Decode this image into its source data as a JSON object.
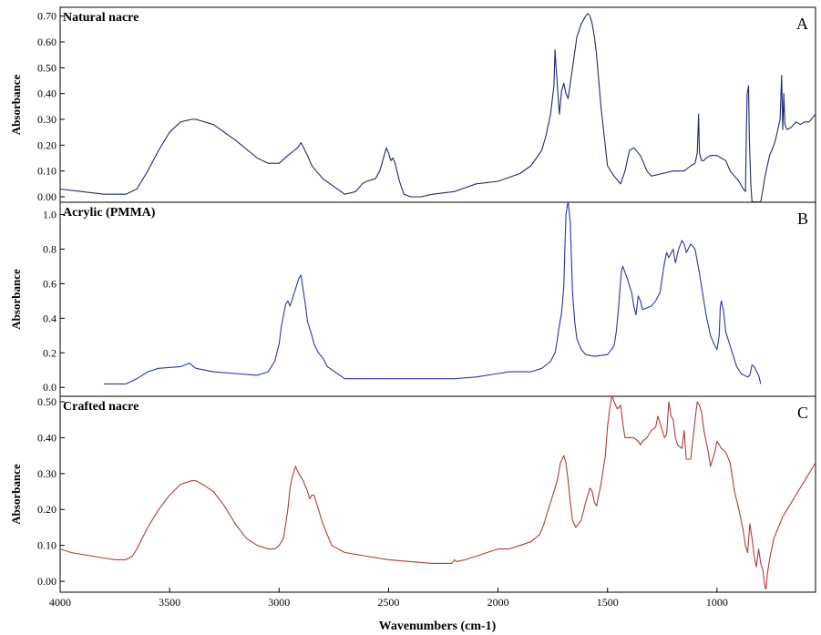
{
  "figure": {
    "xlabel": "Wavenumbers (cm-1)",
    "x_ticks": [
      "4000",
      "3500",
      "3000",
      "2500",
      "2000",
      "1500",
      "1000"
    ],
    "xlim": [
      4000,
      550
    ],
    "x_reversed": true
  },
  "chart_data": [
    {
      "type": "line",
      "panel_letter": "A",
      "title": "Natural nacre",
      "ylabel": "Absorbance",
      "ylim": [
        0.0,
        0.72
      ],
      "y_ticks": [
        "0.00",
        "0.10",
        "0.20",
        "0.30",
        "0.40",
        "0.50",
        "0.60",
        "0.70"
      ],
      "color": "#1f2a6e",
      "grid": false,
      "series": [
        {
          "x": [
            4000,
            3900,
            3800,
            3700,
            3650,
            3600,
            3550,
            3500,
            3450,
            3400,
            3380,
            3300,
            3200,
            3100,
            3050,
            3000,
            2960,
            2930,
            2915,
            2900,
            2870,
            2850,
            2830,
            2810,
            2800,
            2700,
            2650,
            2620,
            2600,
            2560,
            2540,
            2520,
            2510,
            2500,
            2490,
            2480,
            2470,
            2450,
            2430,
            2400,
            2350,
            2300,
            2200,
            2100,
            2000,
            1900,
            1850,
            1800,
            1780,
            1760,
            1745,
            1740,
            1735,
            1720,
            1710,
            1700,
            1690,
            1680,
            1660,
            1640,
            1620,
            1600,
            1590,
            1580,
            1570,
            1560,
            1550,
            1530,
            1500,
            1470,
            1450,
            1440,
            1420,
            1400,
            1380,
            1350,
            1320,
            1300,
            1250,
            1200,
            1150,
            1120,
            1100,
            1090,
            1084,
            1080,
            1070,
            1060,
            1050,
            1030,
            1000,
            980,
            960,
            940,
            900,
            880,
            870,
            866,
            862,
            856,
            852,
            845,
            840,
            800,
            780,
            760,
            750,
            740,
            730,
            712,
            705,
            700,
            695,
            690,
            680,
            660,
            640,
            620,
            600,
            580,
            560,
            550
          ],
          "y": [
            0.03,
            0.02,
            0.01,
            0.01,
            0.03,
            0.1,
            0.18,
            0.25,
            0.29,
            0.3,
            0.3,
            0.28,
            0.22,
            0.15,
            0.13,
            0.13,
            0.16,
            0.18,
            0.19,
            0.21,
            0.16,
            0.12,
            0.1,
            0.08,
            0.07,
            0.01,
            0.02,
            0.05,
            0.06,
            0.07,
            0.1,
            0.16,
            0.19,
            0.17,
            0.14,
            0.15,
            0.13,
            0.06,
            0.01,
            0.0,
            0.0,
            0.01,
            0.02,
            0.05,
            0.06,
            0.09,
            0.12,
            0.18,
            0.24,
            0.32,
            0.43,
            0.57,
            0.5,
            0.32,
            0.41,
            0.44,
            0.4,
            0.38,
            0.5,
            0.62,
            0.67,
            0.7,
            0.71,
            0.7,
            0.67,
            0.62,
            0.55,
            0.35,
            0.12,
            0.08,
            0.06,
            0.05,
            0.1,
            0.18,
            0.19,
            0.16,
            0.1,
            0.08,
            0.09,
            0.1,
            0.1,
            0.12,
            0.13,
            0.17,
            0.32,
            0.17,
            0.14,
            0.14,
            0.15,
            0.16,
            0.16,
            0.15,
            0.14,
            0.1,
            0.06,
            0.03,
            0.02,
            0.25,
            0.4,
            0.43,
            0.22,
            0.04,
            -0.02,
            -0.02,
            0.08,
            0.16,
            0.18,
            0.2,
            0.23,
            0.3,
            0.47,
            0.26,
            0.4,
            0.28,
            0.26,
            0.27,
            0.29,
            0.28,
            0.29,
            0.29,
            0.31,
            0.32
          ]
        }
      ]
    },
    {
      "type": "line",
      "panel_letter": "B",
      "title": "Acrylic (PMMA)",
      "ylabel": "Absorbance",
      "ylim": [
        -0.02,
        1.05
      ],
      "y_ticks": [
        "0.0",
        "0.2",
        "0.4",
        "0.6",
        "0.8",
        "1.0"
      ],
      "color": "#2b35a8",
      "grid": false,
      "series": [
        {
          "x": [
            3800,
            3750,
            3700,
            3650,
            3600,
            3550,
            3450,
            3430,
            3410,
            3380,
            3300,
            3200,
            3100,
            3050,
            3020,
            3000,
            2990,
            2970,
            2960,
            2950,
            2930,
            2910,
            2900,
            2880,
            2870,
            2850,
            2840,
            2820,
            2800,
            2780,
            2700,
            2500,
            2300,
            2200,
            2100,
            2000,
            1950,
            1900,
            1850,
            1800,
            1780,
            1760,
            1740,
            1730,
            1725,
            1710,
            1700,
            1695,
            1690,
            1680,
            1670,
            1660,
            1650,
            1640,
            1620,
            1600,
            1560,
            1500,
            1470,
            1460,
            1450,
            1440,
            1435,
            1430,
            1410,
            1390,
            1380,
            1370,
            1360,
            1350,
            1340,
            1300,
            1280,
            1260,
            1240,
            1230,
            1220,
            1200,
            1190,
            1175,
            1160,
            1150,
            1140,
            1120,
            1100,
            1080,
            1070,
            1060,
            1050,
            1040,
            1030,
            1010,
            1000,
            990,
            985,
            980,
            970,
            960,
            940,
            910,
            890,
            860,
            850,
            840,
            830,
            810,
            800
          ],
          "y": [
            0.02,
            0.02,
            0.02,
            0.05,
            0.09,
            0.11,
            0.12,
            0.13,
            0.14,
            0.11,
            0.09,
            0.08,
            0.07,
            0.09,
            0.15,
            0.25,
            0.35,
            0.48,
            0.5,
            0.47,
            0.55,
            0.63,
            0.65,
            0.48,
            0.38,
            0.3,
            0.25,
            0.2,
            0.17,
            0.12,
            0.05,
            0.05,
            0.05,
            0.05,
            0.06,
            0.08,
            0.09,
            0.09,
            0.09,
            0.11,
            0.13,
            0.15,
            0.2,
            0.27,
            0.32,
            0.43,
            0.58,
            0.8,
            1.0,
            1.08,
            0.95,
            0.55,
            0.38,
            0.28,
            0.22,
            0.19,
            0.18,
            0.19,
            0.24,
            0.32,
            0.45,
            0.62,
            0.68,
            0.7,
            0.63,
            0.55,
            0.47,
            0.42,
            0.53,
            0.5,
            0.45,
            0.47,
            0.5,
            0.55,
            0.72,
            0.78,
            0.75,
            0.8,
            0.72,
            0.8,
            0.85,
            0.83,
            0.78,
            0.83,
            0.8,
            0.66,
            0.58,
            0.5,
            0.42,
            0.36,
            0.3,
            0.24,
            0.22,
            0.3,
            0.47,
            0.5,
            0.44,
            0.32,
            0.24,
            0.12,
            0.08,
            0.06,
            0.07,
            0.13,
            0.12,
            0.07,
            0.02
          ]
        }
      ]
    },
    {
      "type": "line",
      "panel_letter": "C",
      "title": "Crafted nacre",
      "ylabel": "Absorbance",
      "ylim": [
        -0.015,
        0.505
      ],
      "y_ticks": [
        "0.00",
        "0.10",
        "0.20",
        "0.30",
        "0.40",
        "0.50"
      ],
      "color": "#b33a3a",
      "grid": false,
      "series": [
        {
          "x": [
            4000,
            3950,
            3900,
            3850,
            3800,
            3750,
            3700,
            3670,
            3650,
            3600,
            3550,
            3500,
            3450,
            3400,
            3380,
            3350,
            3300,
            3250,
            3200,
            3150,
            3100,
            3050,
            3020,
            3000,
            2980,
            2960,
            2950,
            2940,
            2925,
            2910,
            2890,
            2870,
            2860,
            2850,
            2840,
            2830,
            2800,
            2760,
            2700,
            2600,
            2500,
            2400,
            2300,
            2250,
            2210,
            2200,
            2190,
            2150,
            2100,
            2050,
            2000,
            1950,
            1900,
            1850,
            1830,
            1810,
            1790,
            1770,
            1750,
            1730,
            1715,
            1700,
            1690,
            1680,
            1670,
            1660,
            1645,
            1620,
            1600,
            1580,
            1570,
            1560,
            1550,
            1530,
            1510,
            1500,
            1490,
            1480,
            1470,
            1455,
            1440,
            1430,
            1420,
            1400,
            1380,
            1360,
            1350,
            1340,
            1320,
            1300,
            1280,
            1270,
            1260,
            1240,
            1230,
            1220,
            1210,
            1200,
            1190,
            1180,
            1160,
            1150,
            1140,
            1120,
            1100,
            1090,
            1080,
            1070,
            1060,
            1040,
            1030,
            1020,
            1010,
            1000,
            990,
            980,
            960,
            940,
            920,
            900,
            880,
            870,
            860,
            850,
            840,
            830,
            820,
            810,
            800,
            790,
            780,
            775,
            770,
            760,
            750,
            740,
            720,
            700,
            680,
            660,
            640,
            620,
            600,
            580,
            560,
            550
          ],
          "y": [
            0.09,
            0.08,
            0.075,
            0.07,
            0.065,
            0.06,
            0.06,
            0.07,
            0.09,
            0.15,
            0.2,
            0.24,
            0.27,
            0.28,
            0.28,
            0.27,
            0.25,
            0.21,
            0.16,
            0.12,
            0.1,
            0.09,
            0.09,
            0.1,
            0.12,
            0.2,
            0.26,
            0.29,
            0.32,
            0.3,
            0.28,
            0.25,
            0.23,
            0.24,
            0.24,
            0.22,
            0.16,
            0.1,
            0.08,
            0.07,
            0.06,
            0.055,
            0.05,
            0.05,
            0.05,
            0.06,
            0.055,
            0.06,
            0.07,
            0.08,
            0.09,
            0.09,
            0.1,
            0.11,
            0.12,
            0.13,
            0.16,
            0.2,
            0.24,
            0.28,
            0.33,
            0.35,
            0.33,
            0.28,
            0.22,
            0.17,
            0.15,
            0.17,
            0.22,
            0.26,
            0.25,
            0.22,
            0.21,
            0.27,
            0.35,
            0.43,
            0.48,
            0.52,
            0.5,
            0.48,
            0.49,
            0.44,
            0.4,
            0.4,
            0.4,
            0.39,
            0.38,
            0.39,
            0.4,
            0.42,
            0.43,
            0.46,
            0.44,
            0.4,
            0.41,
            0.5,
            0.46,
            0.45,
            0.4,
            0.38,
            0.37,
            0.42,
            0.34,
            0.34,
            0.45,
            0.5,
            0.49,
            0.47,
            0.42,
            0.36,
            0.32,
            0.34,
            0.36,
            0.39,
            0.38,
            0.37,
            0.36,
            0.33,
            0.25,
            0.2,
            0.14,
            0.1,
            0.08,
            0.16,
            0.12,
            0.07,
            0.04,
            0.09,
            0.05,
            0.03,
            -0.02,
            -0.02,
            0.02,
            0.06,
            0.09,
            0.12,
            0.15,
            0.18,
            0.2,
            0.22,
            0.24,
            0.26,
            0.28,
            0.3,
            0.32,
            0.33
          ]
        }
      ]
    }
  ]
}
